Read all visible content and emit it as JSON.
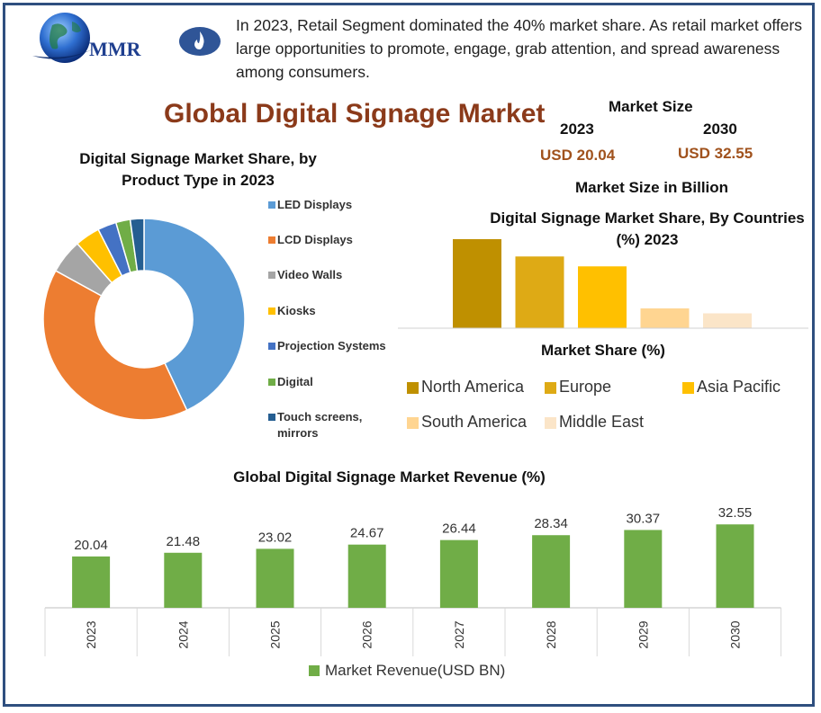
{
  "header": {
    "logo_text": "MMR",
    "intro_text": "In 2023, Retail Segment dominated the 40% market share. As retail market offers large opportunities to promote, engage, grab attention, and spread awareness among consumers."
  },
  "main_title": "Global Digital Signage Market",
  "market_size": {
    "title": "Market Size",
    "year_a": "2023",
    "year_b": "2030",
    "value_a": "USD 20.04",
    "value_b": "USD 32.55",
    "caption": "Market Size in Billion"
  },
  "colors": {
    "frame": "#2f4f7f",
    "title": "#8b3a1a",
    "usd": "#a0521d",
    "revenue_bar": "#70ad47"
  },
  "chart_data": [
    {
      "type": "pie",
      "title": "Digital Signage Market Share, by Product Type in 2023",
      "donut": true,
      "legend_position": "right",
      "categories": [
        "LED Displays",
        "LCD Displays",
        "Video Walls",
        "Kiosks",
        "Projection Systems",
        "Digital",
        "Touch screens, mirrors"
      ],
      "values": [
        43,
        40,
        5.5,
        4,
        3,
        2.3,
        2.2
      ],
      "colors": [
        "#5b9bd5",
        "#ed7d31",
        "#a5a5a5",
        "#ffc000",
        "#4472c4",
        "#70ad47",
        "#255e91"
      ]
    },
    {
      "type": "bar",
      "title": "Digital Signage Market Share, By Countries (%) 2023",
      "xlabel": "Market Share (%)",
      "legend_position": "bottom",
      "categories": [
        "North America",
        "Europe",
        "Asia Pacific",
        "South America",
        "Middle East"
      ],
      "values": [
        36,
        29,
        25,
        8,
        6
      ],
      "ylim": [
        0,
        40
      ],
      "colors": [
        "#bf9000",
        "#deaa15",
        "#ffc000",
        "#ffd591",
        "#fbe5c8"
      ]
    },
    {
      "type": "bar",
      "title": "Global Digital Signage Market Revenue (%)",
      "categories": [
        "2023",
        "2024",
        "2025",
        "2026",
        "2027",
        "2028",
        "2029",
        "2030"
      ],
      "series": [
        {
          "name": "Market Revenue(USD BN)",
          "values": [
            20.04,
            21.48,
            23.02,
            24.67,
            26.44,
            28.34,
            30.37,
            32.55
          ]
        }
      ],
      "data_labels": [
        "20.04",
        "21.48",
        "23.02",
        "24.67",
        "26.44",
        "28.34",
        "30.37",
        "32.55"
      ],
      "ylim": [
        0,
        40
      ],
      "legend_position": "bottom"
    }
  ]
}
